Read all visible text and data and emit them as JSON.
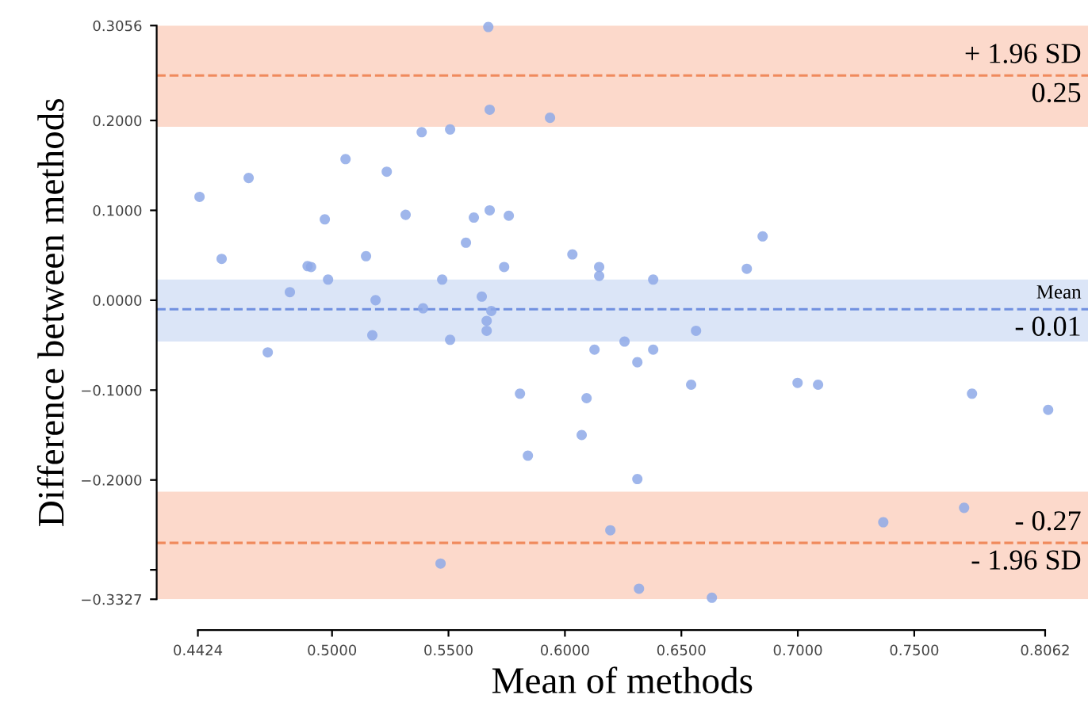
{
  "chart_data": {
    "type": "scatter",
    "xlabel": "Mean of methods",
    "ylabel": "Difference between methods",
    "xlim": [
      0.4247,
      0.8246
    ],
    "ylim": [
      -0.3327,
      0.3056
    ],
    "xticks": [
      0.4424,
      {
        "value": 0.5,
        "label": "0.5000"
      },
      {
        "value": 0.55,
        "label": "0.5500"
      },
      {
        "value": 0.6,
        "label": "0.6000"
      },
      {
        "value": 0.65,
        "label": "0.6500"
      },
      {
        "value": 0.7,
        "label": "0.7000"
      },
      {
        "value": 0.75,
        "label": "0.7500"
      },
      0.8062
    ],
    "yticks": [
      0.3056,
      {
        "value": 0.2,
        "label": "0.2000"
      },
      {
        "value": 0.1,
        "label": "0.1000"
      },
      {
        "value": 0,
        "label": "0.0000"
      },
      {
        "value": -0.1,
        "label": "−0.1000"
      },
      {
        "value": -0.2,
        "label": "−0.2000"
      },
      {
        "value": -0.3,
        "label": null
      },
      {
        "value": -0.3327,
        "label": "−0.3327"
      }
    ],
    "grid": false,
    "marker": "circle",
    "series": [
      {
        "color": "#8ea9e8",
        "x": [
          0.4431,
          0.4526,
          0.4642,
          0.4724,
          0.4819,
          0.4895,
          0.491,
          0.4969,
          0.4983,
          0.5058,
          0.5146,
          0.5187,
          0.5173,
          0.5235,
          0.5316,
          0.5385,
          0.5391,
          0.5473,
          0.5466,
          0.5507,
          0.5507,
          0.5575,
          0.5609,
          0.5643,
          0.5664,
          0.5664,
          0.5684,
          0.5677,
          0.5671,
          0.5677,
          0.5739,
          0.5759,
          0.5807,
          0.5841,
          0.5936,
          0.6032,
          0.6072,
          0.6093,
          0.6127,
          0.6147,
          0.6147,
          0.6195,
          0.6256,
          0.6311,
          0.6311,
          0.6318,
          0.6379,
          0.6379,
          0.6542,
          0.6563,
          0.6631,
          0.6781,
          0.6849,
          0.6999,
          0.7087,
          0.7367,
          0.7714,
          0.7748,
          0.8075
        ],
        "values": [
          0.115,
          0.046,
          0.136,
          -0.058,
          0.009,
          0.038,
          0.037,
          0.09,
          0.023,
          0.157,
          0.049,
          0.0,
          -0.039,
          0.143,
          0.095,
          0.187,
          -0.009,
          0.023,
          -0.293,
          0.19,
          -0.044,
          0.064,
          0.092,
          0.004,
          -0.023,
          -0.034,
          -0.012,
          0.1,
          0.304,
          0.212,
          0.037,
          0.094,
          -0.104,
          -0.173,
          0.203,
          0.051,
          -0.15,
          -0.109,
          -0.055,
          0.037,
          0.027,
          -0.256,
          -0.046,
          -0.069,
          -0.199,
          -0.321,
          0.023,
          -0.055,
          -0.094,
          -0.034,
          -0.331,
          0.035,
          0.071,
          -0.092,
          -0.094,
          -0.247,
          -0.231,
          -0.104,
          -0.122
        ]
      }
    ],
    "bands": [
      {
        "axis": "y",
        "from": 0.193,
        "to": 0.3056,
        "color": "#fcd9cb"
      },
      {
        "axis": "y",
        "from": -0.046,
        "to": 0.023,
        "color": "#dbe5f7"
      },
      {
        "axis": "y",
        "from": -0.3327,
        "to": -0.213,
        "color": "#fcd9cb"
      }
    ],
    "ref_lines": [
      {
        "axis": "y",
        "value": 0.25,
        "label": "+ 1.96 SD",
        "color": "#f08a5d",
        "line_style": "dashed"
      },
      {
        "axis": "y",
        "value": -0.01,
        "label": "Mean",
        "color": "#7090e0",
        "line_style": "dashed"
      },
      {
        "axis": "y",
        "value": -0.27,
        "label": "- 0.27",
        "color": "#f08a5d",
        "line_style": "dashed"
      }
    ],
    "annotations": [
      {
        "text": "0.25",
        "y": 0.25
      },
      {
        "text": "- 0.01",
        "y": -0.01
      },
      {
        "text": "- 1.96 SD",
        "y": -0.27
      }
    ]
  }
}
